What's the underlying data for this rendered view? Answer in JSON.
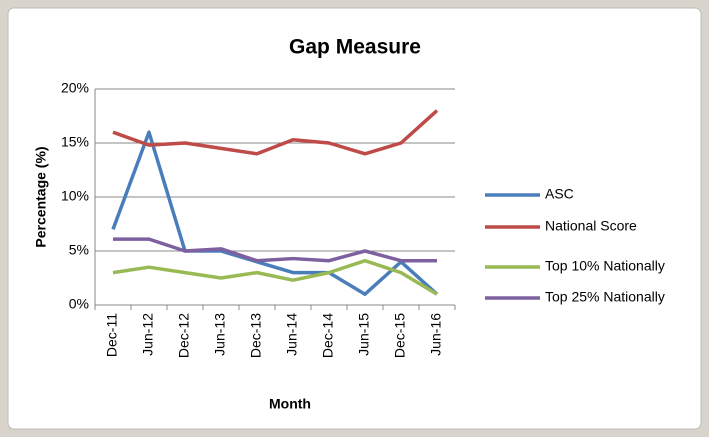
{
  "chart_data": {
    "type": "line",
    "title": "Gap Measure",
    "x_label": "Month",
    "y_label": "Percentage (%)",
    "categories": [
      "Dec-11",
      "Jun-12",
      "Dec-12",
      "Jun-13",
      "Dec-13",
      "Jun-14",
      "Dec-14",
      "Jun-15",
      "Dec-15",
      "Jun-16"
    ],
    "series": [
      {
        "name": "ASC",
        "color": "#4a7ebb",
        "values": [
          7,
          16,
          5,
          5,
          4,
          3,
          3,
          1,
          4,
          1
        ]
      },
      {
        "name": "National Score",
        "color": "#be4b48",
        "values": [
          16,
          14.8,
          15,
          14.5,
          14,
          15.3,
          15,
          14,
          15,
          18
        ]
      },
      {
        "name": "Top 10% Nationally",
        "color": "#98b954",
        "values": [
          3,
          3.5,
          3,
          2.5,
          3,
          2.3,
          3,
          4.1,
          3,
          1
        ]
      },
      {
        "name": "Top 25% Nationally",
        "color": "#7d60a0",
        "values": [
          6.1,
          6.1,
          5,
          5.2,
          4.1,
          4.3,
          4.1,
          5,
          4.1,
          4.1
        ]
      }
    ],
    "ylim": [
      0,
      20
    ],
    "yticks": [
      {
        "value": 0,
        "label": "0%"
      },
      {
        "value": 5,
        "label": "5%"
      },
      {
        "value": 10,
        "label": "10%"
      },
      {
        "value": 15,
        "label": "15%"
      },
      {
        "value": 20,
        "label": "20%"
      }
    ],
    "grid": true,
    "legend": "right"
  }
}
